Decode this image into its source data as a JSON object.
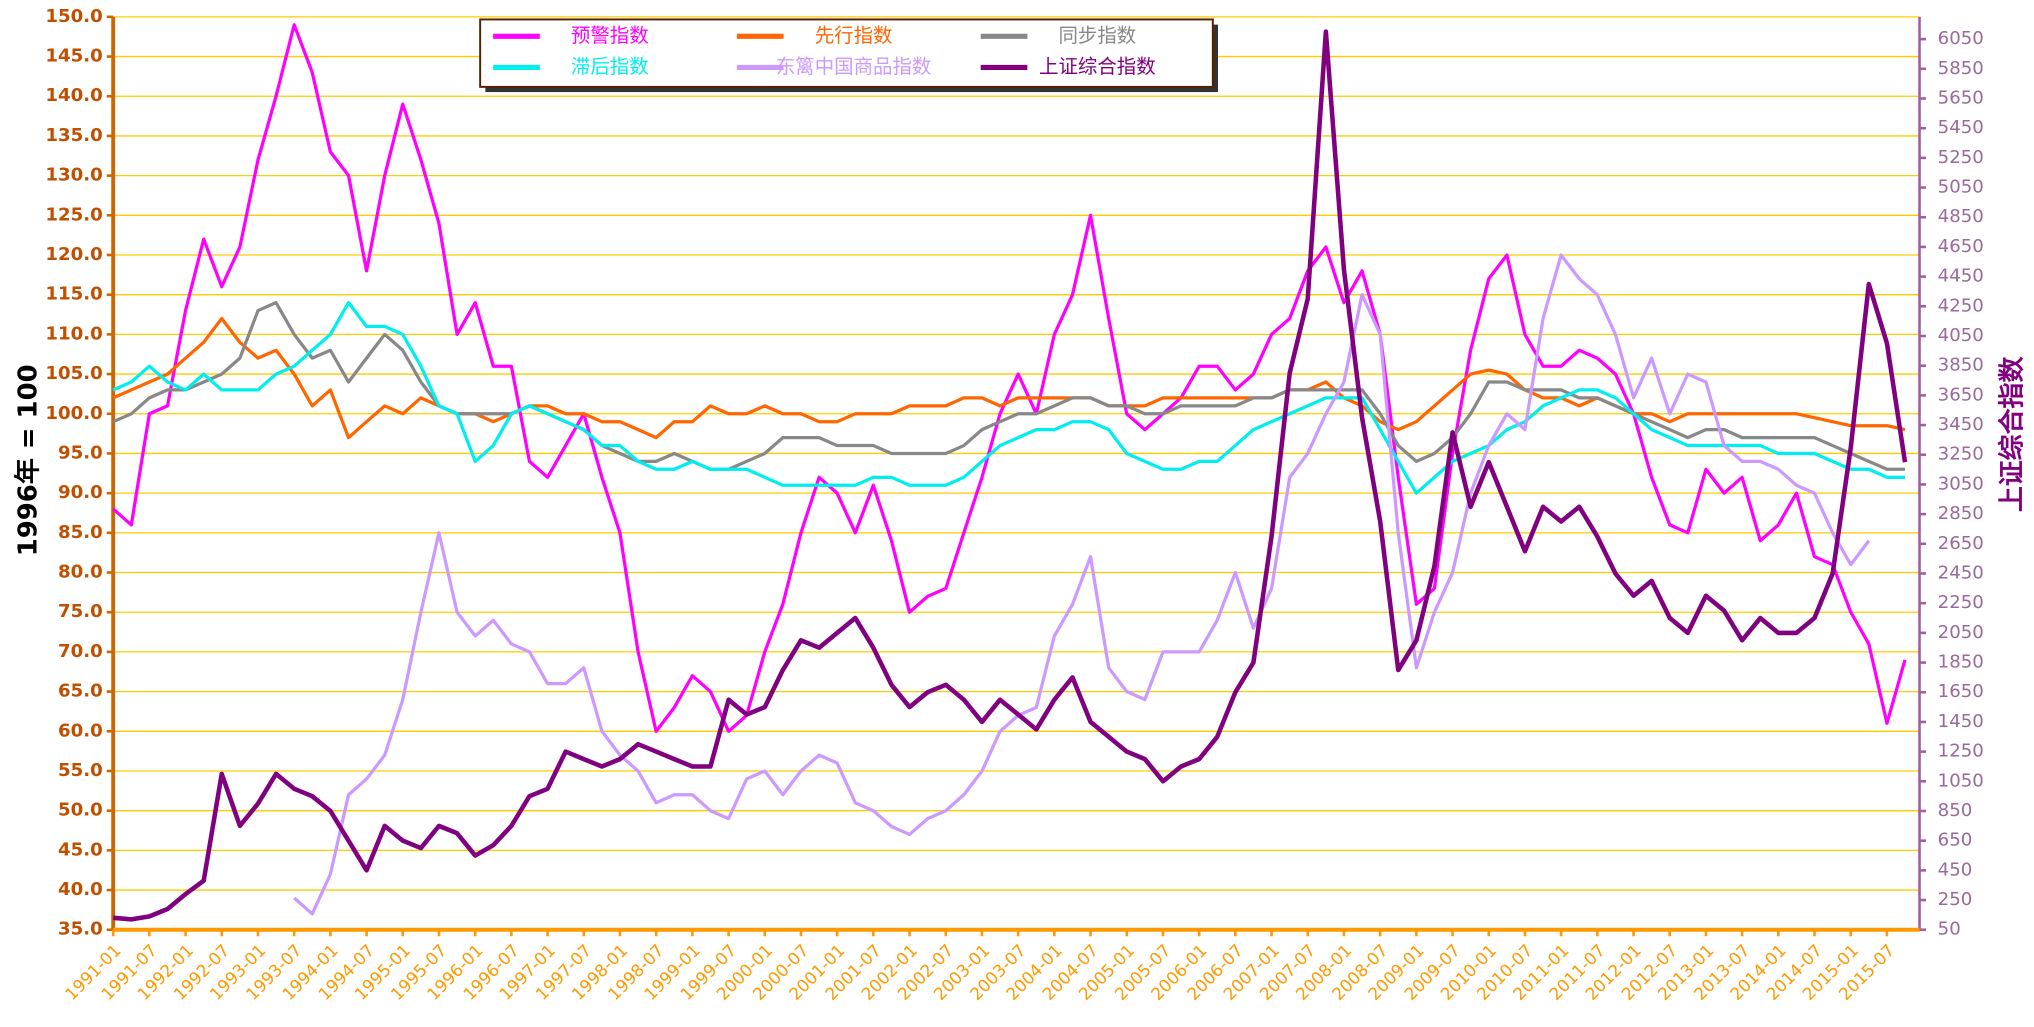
{
  "chart_data": {
    "type": "line",
    "y_label": "1996年 = 100",
    "y2_label": "上证综合指数",
    "grid": true,
    "legend": "top",
    "categories": [
      "1991-01",
      null,
      "1991-07",
      null,
      "1992-01",
      null,
      "1992-07",
      null,
      "1993-01",
      null,
      "1993-07",
      null,
      "1994-01",
      null,
      "1994-07",
      null,
      "1995-01",
      null,
      "1995-07",
      null,
      "1996-01",
      null,
      "1996-07",
      null,
      "1997-01",
      null,
      "1997-07",
      null,
      "1998-01",
      null,
      "1998-07",
      null,
      "1999-01",
      null,
      "1999-07",
      null,
      "2000-01",
      null,
      "2000-07",
      null,
      "2001-01",
      null,
      "2001-07",
      null,
      "2002-01",
      null,
      "2002-07",
      null,
      "2003-01",
      null,
      "2003-07",
      null,
      "2004-01",
      null,
      "2004-07",
      null,
      "2005-01",
      null,
      "2005-07",
      null,
      "2006-01",
      null,
      "2006-07",
      null,
      "2007-01",
      null,
      "2007-07",
      null,
      "2008-01",
      null,
      "2008-07",
      null,
      "2009-01",
      null,
      "2009-07",
      null,
      "2010-01",
      null,
      "2010-07",
      null,
      "2011-01",
      null,
      "2011-07",
      null,
      "2012-01",
      null,
      "2012-07",
      null,
      "2013-01",
      null,
      "2013-07",
      null,
      "2014-01",
      null,
      "2014-07",
      null,
      "2015-01",
      null,
      "2015-07",
      null
    ],
    "ylim": [
      35,
      150
    ],
    "yticks": [
      {
        "value": 35,
        "label": "35.0"
      },
      {
        "value": 40,
        "label": "40.0"
      },
      {
        "value": 45,
        "label": "45.0"
      },
      {
        "value": 50,
        "label": "50.0"
      },
      {
        "value": 55,
        "label": "55.0"
      },
      {
        "value": 60,
        "label": "60.0"
      },
      {
        "value": 65,
        "label": "65.0"
      },
      {
        "value": 70,
        "label": "70.0"
      },
      {
        "value": 75,
        "label": "75.0"
      },
      {
        "value": 80,
        "label": "80.0"
      },
      {
        "value": 85,
        "label": "85.0"
      },
      {
        "value": 90,
        "label": "90.0"
      },
      {
        "value": 95,
        "label": "95.0"
      },
      {
        "value": 100,
        "label": "100.0"
      },
      {
        "value": 105,
        "label": "105.0"
      },
      {
        "value": 110,
        "label": "110.0"
      },
      {
        "value": 115,
        "label": "115.0"
      },
      {
        "value": 120,
        "label": "120.0"
      },
      {
        "value": 125,
        "label": "125.0"
      },
      {
        "value": 130,
        "label": "130.0"
      },
      {
        "value": 135,
        "label": "135.0"
      },
      {
        "value": 140,
        "label": "140.0"
      },
      {
        "value": 145,
        "label": "145.0"
      },
      {
        "value": 150,
        "label": "150.0"
      }
    ],
    "y2lim": [
      50,
      6200
    ],
    "y2ticks": [
      50,
      250,
      450,
      650,
      850,
      1050,
      1250,
      1450,
      1650,
      1850,
      2050,
      2250,
      2450,
      2650,
      2850,
      3050,
      3250,
      3450,
      3650,
      3850,
      4050,
      4250,
      4450,
      4650,
      4850,
      5050,
      5250,
      5450,
      5650,
      5850,
      6050
    ],
    "series": [
      {
        "name": "预警指数",
        "color": "#ff00ff",
        "values": [
          88,
          86,
          100,
          101,
          113,
          122,
          116,
          121,
          132,
          140,
          149,
          143,
          133,
          130,
          118,
          130,
          139,
          132,
          124,
          110,
          114,
          106,
          106,
          94,
          92,
          96,
          100,
          92,
          85,
          70,
          60,
          63,
          67,
          65,
          60,
          62,
          70,
          76,
          85,
          92,
          90,
          85,
          91,
          84,
          75,
          77,
          78,
          85,
          92,
          100,
          105,
          100,
          110,
          115,
          125,
          112,
          100,
          98,
          100,
          102,
          106,
          106,
          103,
          105,
          110,
          112,
          118,
          121,
          114,
          118,
          110,
          92,
          76,
          78,
          95,
          108,
          117,
          120,
          110,
          106,
          106,
          108,
          107,
          105,
          100,
          92,
          86,
          85,
          93,
          90,
          92,
          84,
          86,
          90,
          82,
          81,
          75,
          71,
          61,
          69
        ]
      },
      {
        "name": "先行指数",
        "color": "#ff6600",
        "values": [
          102,
          103,
          104,
          105,
          107,
          109,
          112,
          109,
          107,
          108,
          105,
          101,
          103,
          97,
          99,
          101,
          100,
          102,
          101,
          100,
          100,
          99,
          100,
          101,
          101,
          100,
          100,
          99,
          99,
          98,
          97,
          99,
          99,
          101,
          100,
          100,
          101,
          100,
          100,
          99,
          99,
          100,
          100,
          100,
          101,
          101,
          101,
          102,
          102,
          101,
          102,
          102,
          102,
          102,
          102,
          101,
          101,
          101,
          102,
          102,
          102,
          102,
          102,
          102,
          102,
          103,
          103,
          104,
          102,
          101,
          99,
          98,
          99,
          101,
          103,
          105,
          105.5,
          105,
          103,
          102,
          102,
          101,
          102,
          101,
          100,
          100,
          99,
          100,
          100,
          100,
          100,
          100,
          100,
          100,
          99.5,
          99,
          98.5,
          98.5,
          98.5,
          98
        ]
      },
      {
        "name": "同步指数",
        "color": "#888888",
        "values": [
          99,
          100,
          102,
          103,
          103,
          104,
          105,
          107,
          113,
          114,
          110,
          107,
          108,
          104,
          107,
          110,
          108,
          104,
          101,
          100,
          100,
          100,
          100,
          101,
          100,
          99,
          98,
          96,
          95,
          94,
          94,
          95,
          94,
          93,
          93,
          94,
          95,
          97,
          97,
          97,
          96,
          96,
          96,
          95,
          95,
          95,
          95,
          96,
          98,
          99,
          100,
          100,
          101,
          102,
          102,
          101,
          101,
          100,
          100,
          101,
          101,
          101,
          101,
          102,
          102,
          103,
          103,
          103,
          103,
          103,
          100,
          96,
          94,
          95,
          97,
          100,
          104,
          104,
          103,
          103,
          103,
          102,
          102,
          101,
          100,
          99,
          98,
          97,
          98,
          98,
          97,
          97,
          97,
          97,
          97,
          96,
          95,
          94,
          93,
          93
        ]
      },
      {
        "name": "滞后指数",
        "color": "#00eeee",
        "values": [
          103,
          104,
          106,
          104,
          103,
          105,
          103,
          103,
          103,
          105,
          106,
          108,
          110,
          114,
          111,
          111,
          110,
          106,
          101,
          100,
          94,
          96,
          100,
          101,
          100,
          99,
          98,
          96,
          96,
          94,
          93,
          93,
          94,
          93,
          93,
          93,
          92,
          91,
          91,
          91,
          91,
          91,
          92,
          92,
          91,
          91,
          91,
          92,
          94,
          96,
          97,
          98,
          98,
          99,
          99,
          98,
          95,
          94,
          93,
          93,
          94,
          94,
          96,
          98,
          99,
          100,
          101,
          102,
          102,
          102,
          98,
          94,
          90,
          92,
          94,
          95,
          96,
          98,
          99,
          101,
          102,
          103,
          103,
          102,
          100,
          98,
          97,
          96,
          96,
          96,
          96,
          96,
          95,
          95,
          95,
          94,
          93,
          93,
          92,
          92
        ]
      },
      {
        "name": "东篱中国商品指数",
        "color": "#cc99ff",
        "values": [
          null,
          null,
          null,
          null,
          null,
          null,
          null,
          null,
          null,
          null,
          39,
          37,
          42,
          52,
          54,
          57,
          64,
          75,
          85,
          75,
          72,
          74,
          71,
          70,
          66,
          66,
          68,
          60,
          57,
          55,
          51,
          52,
          52,
          50,
          49,
          54,
          55,
          52,
          55,
          57,
          56,
          51,
          50,
          48,
          47,
          49,
          50,
          52,
          55,
          60,
          62,
          63,
          72,
          76,
          82,
          68,
          65,
          64,
          70,
          70,
          70,
          74,
          80,
          73,
          78,
          92,
          95,
          100,
          104,
          115,
          110,
          85,
          68,
          75,
          80,
          90,
          96,
          100,
          98,
          112,
          120,
          117,
          115,
          110,
          102,
          107,
          100,
          105,
          104,
          96,
          94,
          94,
          93,
          91,
          90,
          85,
          81,
          84,
          null,
          null
        ]
      },
      {
        "name": "上证综合指数",
        "color": "#800080",
        "axis": "y2",
        "values": [
          130,
          120,
          140,
          190,
          290,
          380,
          1100,
          750,
          900,
          1100,
          1000,
          950,
          850,
          650,
          450,
          750,
          650,
          600,
          750,
          700,
          550,
          620,
          750,
          950,
          1000,
          1250,
          1200,
          1150,
          1200,
          1300,
          1250,
          1200,
          1150,
          1150,
          1600,
          1500,
          1550,
          1800,
          2000,
          1950,
          2050,
          2150,
          1950,
          1700,
          1550,
          1650,
          1700,
          1600,
          1450,
          1600,
          1500,
          1400,
          1600,
          1750,
          1450,
          1350,
          1250,
          1200,
          1050,
          1150,
          1200,
          1350,
          1650,
          1850,
          2700,
          3800,
          4300,
          6100,
          4500,
          3500,
          2800,
          1800,
          2000,
          2500,
          3400,
          2900,
          3200,
          2900,
          2600,
          2900,
          2800,
          2900,
          2700,
          2450,
          2300,
          2400,
          2150,
          2050,
          2300,
          2200,
          2000,
          2150,
          2050,
          2050,
          2150,
          2450,
          3300,
          4400,
          4000,
          3200
        ]
      }
    ]
  }
}
